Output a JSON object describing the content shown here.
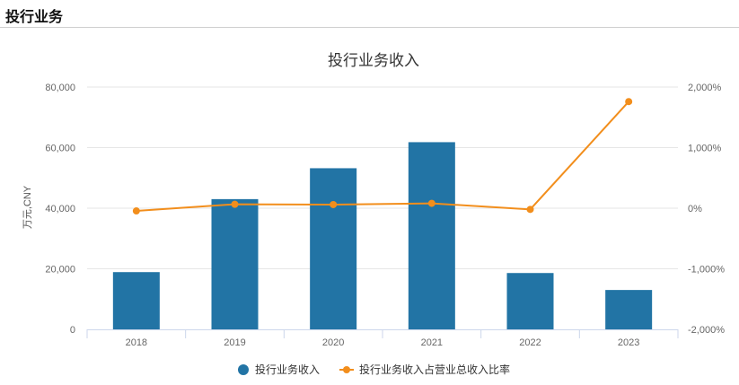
{
  "header": {
    "title": "投行业务"
  },
  "colors": {
    "bar": "#2274a5",
    "line": "#f28e1c",
    "grid": "#e6e6e6",
    "axis": "#ccd6eb"
  },
  "chart_data": {
    "type": "bar",
    "title": "投行业务收入",
    "categories": [
      "2018",
      "2019",
      "2020",
      "2021",
      "2022",
      "2023"
    ],
    "series": [
      {
        "name": "投行业务收入",
        "type": "bar",
        "axis": "left",
        "values": [
          18900,
          43000,
          53200,
          61800,
          18600,
          13000
        ]
      },
      {
        "name": "投行业务收入占营业总收入比率",
        "type": "line",
        "axis": "right",
        "values": [
          -45,
          65,
          60,
          80,
          -20,
          1760
        ]
      }
    ],
    "y_left": {
      "label": "万元,CNY",
      "ticks": [
        "0",
        "20,000",
        "40,000",
        "60,000",
        "80,000"
      ],
      "range": [
        0,
        80000
      ]
    },
    "y_right": {
      "ticks": [
        "-2,000%",
        "-1,000%",
        "0%",
        "1,000%",
        "2,000%"
      ],
      "range": [
        -2000,
        2000
      ]
    },
    "grid": true,
    "legend": "bottom-center"
  }
}
